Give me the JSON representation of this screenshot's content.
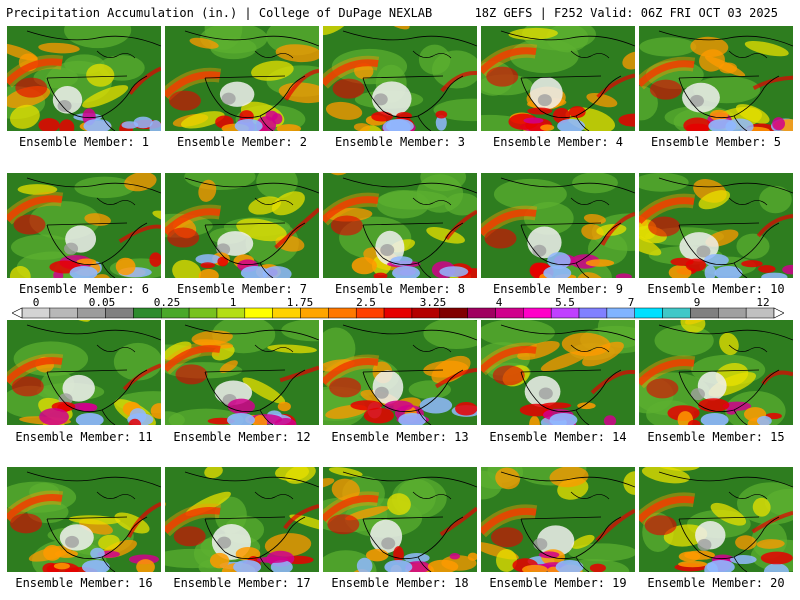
{
  "header": {
    "title": "Precipitation Accumulation (in.) | College of DuPage NEXLAB",
    "run_info": "18Z GEFS | F252 Valid: 06Z FRI OCT 03 2025"
  },
  "panels": [
    {
      "label": "Ensemble Member: 1"
    },
    {
      "label": "Ensemble Member: 2"
    },
    {
      "label": "Ensemble Member: 3"
    },
    {
      "label": "Ensemble Member: 4"
    },
    {
      "label": "Ensemble Member: 5"
    },
    {
      "label": "Ensemble Member: 6"
    },
    {
      "label": "Ensemble Member: 7"
    },
    {
      "label": "Ensemble Member: 8"
    },
    {
      "label": "Ensemble Member: 9"
    },
    {
      "label": "Ensemble Member: 10"
    },
    {
      "label": "Ensemble Member: 11"
    },
    {
      "label": "Ensemble Member: 12"
    },
    {
      "label": "Ensemble Member: 13"
    },
    {
      "label": "Ensemble Member: 14"
    },
    {
      "label": "Ensemble Member: 15"
    },
    {
      "label": "Ensemble Member: 16"
    },
    {
      "label": "Ensemble Member: 17"
    },
    {
      "label": "Ensemble Member: 18"
    },
    {
      "label": "Ensemble Member: 19"
    },
    {
      "label": "Ensemble Member: 20"
    }
  ],
  "colorbar": {
    "tick_labels": [
      "0",
      "0.05",
      "0.25",
      "1",
      "1.75",
      "2.5",
      "3.25",
      "4",
      "5.5",
      "7",
      "9",
      "12"
    ],
    "colors": [
      "#d4d4d4",
      "#b8b8b8",
      "#9c9c9c",
      "#808080",
      "#2e8b2e",
      "#4aa82a",
      "#78c21e",
      "#b4de14",
      "#ffff00",
      "#ffd200",
      "#ffa500",
      "#ff7800",
      "#ff4000",
      "#e60000",
      "#b40000",
      "#800000",
      "#a00060",
      "#d0008c",
      "#ff00c8",
      "#c040ff",
      "#8080ff",
      "#80b4ff",
      "#00e0ff",
      "#40c8c8",
      "#808080",
      "#a0a0a0",
      "#c0c0c0"
    ]
  },
  "map_palette": {
    "base_green": "#2e7d1f",
    "light_green": "#5cb030",
    "yellow": "#e8e000",
    "orange": "#ff9a00",
    "red": "#e60000",
    "magenta": "#d0008c",
    "light_blue": "#90b8ff",
    "white": "#f0f0f0",
    "gray": "#a0a0a0",
    "border": "#000000"
  }
}
